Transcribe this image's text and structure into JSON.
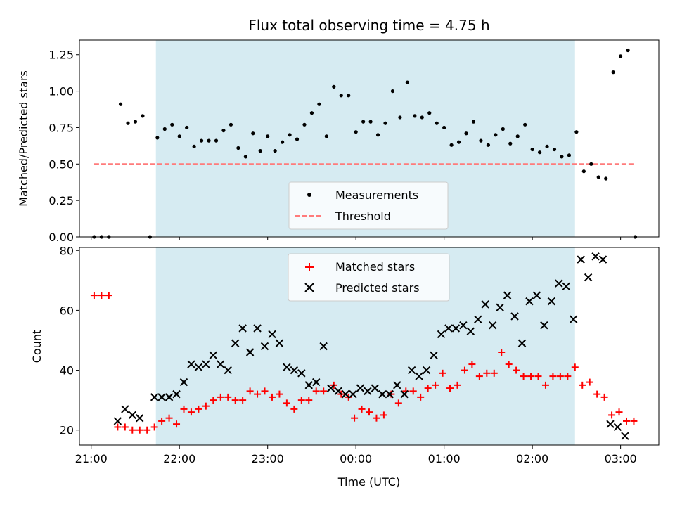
{
  "chart_data": [
    {
      "type": "scatter",
      "title": "Flux total observing time = 4.75 h",
      "xlabel": "",
      "ylabel": "Matched/Predicted stars",
      "ylim": [
        0.0,
        1.35
      ],
      "yticks": [
        "0.00",
        "0.25",
        "0.50",
        "0.75",
        "1.00",
        "1.25"
      ],
      "xlim": [
        "20:52",
        "03:26"
      ],
      "observing_window": [
        "21:44",
        "02:29"
      ],
      "legend_position": "lower-center",
      "series": [
        {
          "name": "Measurements",
          "marker": "dot",
          "color": "#000000",
          "points": [
            [
              "21:02",
              0.0
            ],
            [
              "21:07",
              0.0
            ],
            [
              "21:12",
              0.0
            ],
            [
              "21:20",
              0.91
            ],
            [
              "21:25",
              0.78
            ],
            [
              "21:30",
              0.79
            ],
            [
              "21:35",
              0.83
            ],
            [
              "21:40",
              0.0
            ],
            [
              "21:45",
              0.68
            ],
            [
              "21:50",
              0.74
            ],
            [
              "21:55",
              0.77
            ],
            [
              "22:00",
              0.69
            ],
            [
              "22:05",
              0.75
            ],
            [
              "22:10",
              0.62
            ],
            [
              "22:15",
              0.66
            ],
            [
              "22:20",
              0.66
            ],
            [
              "22:25",
              0.66
            ],
            [
              "22:30",
              0.73
            ],
            [
              "22:35",
              0.77
            ],
            [
              "22:40",
              0.61
            ],
            [
              "22:45",
              0.55
            ],
            [
              "22:50",
              0.71
            ],
            [
              "22:55",
              0.59
            ],
            [
              "23:00",
              0.69
            ],
            [
              "23:05",
              0.59
            ],
            [
              "23:10",
              0.65
            ],
            [
              "23:15",
              0.7
            ],
            [
              "23:20",
              0.67
            ],
            [
              "23:25",
              0.77
            ],
            [
              "23:30",
              0.85
            ],
            [
              "23:35",
              0.91
            ],
            [
              "23:40",
              0.69
            ],
            [
              "23:45",
              1.03
            ],
            [
              "23:50",
              0.97
            ],
            [
              "23:55",
              0.97
            ],
            [
              "00:00",
              0.72
            ],
            [
              "00:05",
              0.79
            ],
            [
              "00:10",
              0.79
            ],
            [
              "00:15",
              0.7
            ],
            [
              "00:20",
              0.78
            ],
            [
              "00:25",
              1.0
            ],
            [
              "00:30",
              0.82
            ],
            [
              "00:35",
              1.06
            ],
            [
              "00:40",
              0.83
            ],
            [
              "00:45",
              0.82
            ],
            [
              "00:50",
              0.85
            ],
            [
              "00:55",
              0.78
            ],
            [
              "01:00",
              0.75
            ],
            [
              "01:05",
              0.63
            ],
            [
              "01:10",
              0.65
            ],
            [
              "01:15",
              0.71
            ],
            [
              "01:20",
              0.79
            ],
            [
              "01:25",
              0.66
            ],
            [
              "01:30",
              0.63
            ],
            [
              "01:35",
              0.7
            ],
            [
              "01:40",
              0.74
            ],
            [
              "01:45",
              0.64
            ],
            [
              "01:50",
              0.69
            ],
            [
              "01:55",
              0.77
            ],
            [
              "02:00",
              0.6
            ],
            [
              "02:05",
              0.58
            ],
            [
              "02:10",
              0.62
            ],
            [
              "02:15",
              0.6
            ],
            [
              "02:20",
              0.55
            ],
            [
              "02:25",
              0.56
            ],
            [
              "02:30",
              0.72
            ],
            [
              "02:35",
              0.45
            ],
            [
              "02:40",
              0.5
            ],
            [
              "02:45",
              0.41
            ],
            [
              "02:50",
              0.4
            ],
            [
              "02:55",
              1.13
            ],
            [
              "03:00",
              1.24
            ],
            [
              "03:05",
              1.28
            ],
            [
              "03:10",
              0.0
            ]
          ]
        },
        {
          "name": "Threshold",
          "style": "dashed",
          "color": "#ff7b7b",
          "points": [
            [
              "21:02",
              0.5
            ],
            [
              "03:10",
              0.5
            ]
          ]
        }
      ]
    },
    {
      "type": "scatter",
      "title": "",
      "xlabel": "Time (UTC)",
      "ylabel": "Count",
      "ylim": [
        15,
        81
      ],
      "yticks": [
        "20",
        "40",
        "60",
        "80"
      ],
      "xlim": [
        "20:52",
        "03:26"
      ],
      "xticks": [
        "21:00",
        "22:00",
        "23:00",
        "00:00",
        "01:00",
        "02:00",
        "03:00"
      ],
      "observing_window": [
        "21:44",
        "02:29"
      ],
      "legend_position": "top-center",
      "series": [
        {
          "name": "Matched stars",
          "marker": "plus",
          "color": "#ff0000",
          "points": [
            [
              "21:02",
              65
            ],
            [
              "21:07",
              65
            ],
            [
              "21:12",
              65
            ],
            [
              "21:18",
              21
            ],
            [
              "21:23",
              21
            ],
            [
              "21:28",
              20
            ],
            [
              "21:33",
              20
            ],
            [
              "21:38",
              20
            ],
            [
              "21:43",
              21
            ],
            [
              "21:48",
              23
            ],
            [
              "21:53",
              24
            ],
            [
              "21:58",
              22
            ],
            [
              "22:03",
              27
            ],
            [
              "22:08",
              26
            ],
            [
              "22:13",
              27
            ],
            [
              "22:18",
              28
            ],
            [
              "22:23",
              30
            ],
            [
              "22:28",
              31
            ],
            [
              "22:33",
              31
            ],
            [
              "22:38",
              30
            ],
            [
              "22:43",
              30
            ],
            [
              "22:48",
              33
            ],
            [
              "22:53",
              32
            ],
            [
              "22:58",
              33
            ],
            [
              "23:03",
              31
            ],
            [
              "23:08",
              32
            ],
            [
              "23:13",
              29
            ],
            [
              "23:18",
              27
            ],
            [
              "23:23",
              30
            ],
            [
              "23:28",
              30
            ],
            [
              "23:33",
              33
            ],
            [
              "23:38",
              33
            ],
            [
              "23:45",
              35
            ],
            [
              "23:50",
              32
            ],
            [
              "23:55",
              31
            ],
            [
              "23:59",
              24
            ],
            [
              "00:04",
              27
            ],
            [
              "00:09",
              26
            ],
            [
              "00:14",
              24
            ],
            [
              "00:19",
              25
            ],
            [
              "00:24",
              32
            ],
            [
              "00:29",
              29
            ],
            [
              "00:34",
              33
            ],
            [
              "00:39",
              33
            ],
            [
              "00:44",
              31
            ],
            [
              "00:49",
              34
            ],
            [
              "00:54",
              35
            ],
            [
              "00:59",
              39
            ],
            [
              "01:04",
              34
            ],
            [
              "01:09",
              35
            ],
            [
              "01:14",
              40
            ],
            [
              "01:19",
              42
            ],
            [
              "01:24",
              38
            ],
            [
              "01:29",
              39
            ],
            [
              "01:34",
              39
            ],
            [
              "01:39",
              46
            ],
            [
              "01:44",
              42
            ],
            [
              "01:49",
              40
            ],
            [
              "01:54",
              38
            ],
            [
              "01:59",
              38
            ],
            [
              "02:04",
              38
            ],
            [
              "02:09",
              35
            ],
            [
              "02:14",
              38
            ],
            [
              "02:19",
              38
            ],
            [
              "02:24",
              38
            ],
            [
              "02:29",
              41
            ],
            [
              "02:34",
              35
            ],
            [
              "02:39",
              36
            ],
            [
              "02:44",
              32
            ],
            [
              "02:49",
              31
            ],
            [
              "02:54",
              25
            ],
            [
              "02:59",
              26
            ],
            [
              "03:04",
              23
            ],
            [
              "03:09",
              23
            ]
          ]
        },
        {
          "name": "Predicted stars",
          "marker": "x",
          "color": "#000000",
          "points": [
            [
              "21:18",
              23
            ],
            [
              "21:23",
              27
            ],
            [
              "21:28",
              25
            ],
            [
              "21:33",
              24
            ],
            [
              "21:43",
              31
            ],
            [
              "21:48",
              31
            ],
            [
              "21:53",
              31
            ],
            [
              "21:58",
              32
            ],
            [
              "22:03",
              36
            ],
            [
              "22:08",
              42
            ],
            [
              "22:13",
              41
            ],
            [
              "22:18",
              42
            ],
            [
              "22:23",
              45
            ],
            [
              "22:28",
              42
            ],
            [
              "22:33",
              40
            ],
            [
              "22:38",
              49
            ],
            [
              "22:43",
              54
            ],
            [
              "22:48",
              46
            ],
            [
              "22:53",
              54
            ],
            [
              "22:58",
              48
            ],
            [
              "23:03",
              52
            ],
            [
              "23:08",
              49
            ],
            [
              "23:13",
              41
            ],
            [
              "23:18",
              40
            ],
            [
              "23:23",
              39
            ],
            [
              "23:28",
              35
            ],
            [
              "23:33",
              36
            ],
            [
              "23:38",
              48
            ],
            [
              "23:43",
              34
            ],
            [
              "23:48",
              33
            ],
            [
              "23:53",
              32
            ],
            [
              "23:58",
              32
            ],
            [
              "00:03",
              34
            ],
            [
              "00:08",
              33
            ],
            [
              "00:13",
              34
            ],
            [
              "00:18",
              32
            ],
            [
              "00:23",
              32
            ],
            [
              "00:28",
              35
            ],
            [
              "00:33",
              32
            ],
            [
              "00:38",
              40
            ],
            [
              "00:43",
              38
            ],
            [
              "00:48",
              40
            ],
            [
              "00:53",
              45
            ],
            [
              "00:58",
              52
            ],
            [
              "01:03",
              54
            ],
            [
              "01:08",
              54
            ],
            [
              "01:13",
              55
            ],
            [
              "01:18",
              53
            ],
            [
              "01:23",
              57
            ],
            [
              "01:28",
              62
            ],
            [
              "01:33",
              55
            ],
            [
              "01:38",
              61
            ],
            [
              "01:43",
              65
            ],
            [
              "01:48",
              58
            ],
            [
              "01:53",
              49
            ],
            [
              "01:58",
              63
            ],
            [
              "02:03",
              65
            ],
            [
              "02:08",
              55
            ],
            [
              "02:13",
              63
            ],
            [
              "02:18",
              69
            ],
            [
              "02:23",
              68
            ],
            [
              "02:28",
              57
            ],
            [
              "02:33",
              77
            ],
            [
              "02:38",
              71
            ],
            [
              "02:43",
              78
            ],
            [
              "02:48",
              77
            ],
            [
              "02:53",
              22
            ],
            [
              "02:58",
              21
            ],
            [
              "03:03",
              18
            ]
          ]
        }
      ]
    }
  ]
}
